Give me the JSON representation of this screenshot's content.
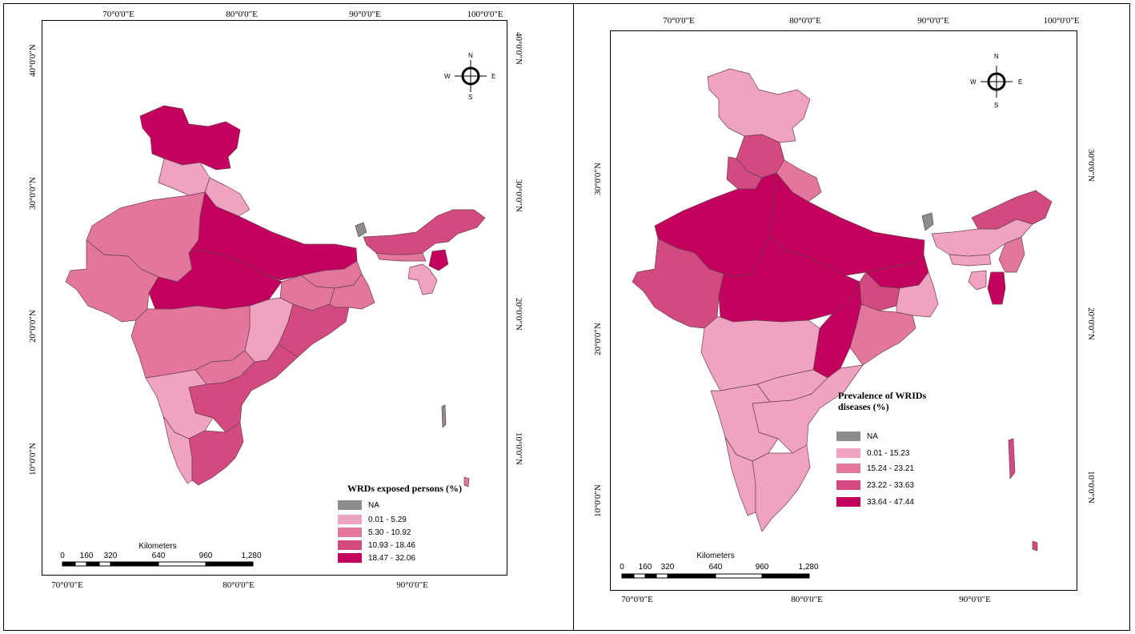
{
  "colors": {
    "na": "#8c8c8c",
    "class1": "#f0a3c0",
    "class2": "#e3769c",
    "class3": "#d24a80",
    "class4": "#c4005f",
    "border": "#6b3f52"
  },
  "maps": [
    {
      "lon_labels_top": [
        "70°0'0\"E",
        "80°0'0\"E",
        "90°0'0\"E",
        "100°0'0\"E"
      ],
      "lon_labels_bottom": [
        "70°0'0\"E",
        "80°0'0\"E",
        "90°0'0\"E"
      ],
      "lat_labels_left": [
        "40°0'0\"N",
        "30°0'0\"N",
        "20°0'0\"N",
        "10°0'0\"N"
      ],
      "lat_labels_right": [
        "40°0'0\"N",
        "30°0'0\"N",
        "20°0'0\"N",
        "10°0'0\"N"
      ],
      "compass": {
        "n": "N",
        "s": "S",
        "e": "E",
        "w": "W"
      },
      "legend": {
        "title": "WRDs exposed persons (%)",
        "items": [
          "NA",
          "0.01 - 5.29",
          "5.30 - 10.92",
          "10.93 - 18.46",
          "18.47 - 32.06"
        ]
      },
      "scale": {
        "unit": "Kilometers",
        "ticks": [
          "0",
          "160",
          "320",
          "640",
          "960",
          "1,280"
        ]
      }
    },
    {
      "lon_labels_top": [
        "70°0'0\"E",
        "80°0'0\"E",
        "90°0'0\"E",
        "100°0'0\"E"
      ],
      "lon_labels_bottom": [
        "70°0'0\"E",
        "80°0'0\"E",
        "90°0'0\"E"
      ],
      "lat_labels_left": [
        "30°0'0\"N",
        "20°0'0\"N",
        "10°0'0\"N"
      ],
      "lat_labels_right": [
        "30°0'0\"N",
        "20°0'0\"N",
        "10°0'0\"N"
      ],
      "compass": {
        "n": "N",
        "s": "S",
        "e": "E",
        "w": "W"
      },
      "legend": {
        "title": "Prevalence of WRIDs diseases (%)",
        "items": [
          "NA",
          "0.01 - 15.23",
          "15.24 - 23.21",
          "23.22 - 33.63",
          "33.64 - 47.44"
        ]
      },
      "scale": {
        "unit": "Kilometers",
        "ticks": [
          "0",
          "160",
          "320",
          "640",
          "960",
          "1,280"
        ]
      }
    }
  ]
}
